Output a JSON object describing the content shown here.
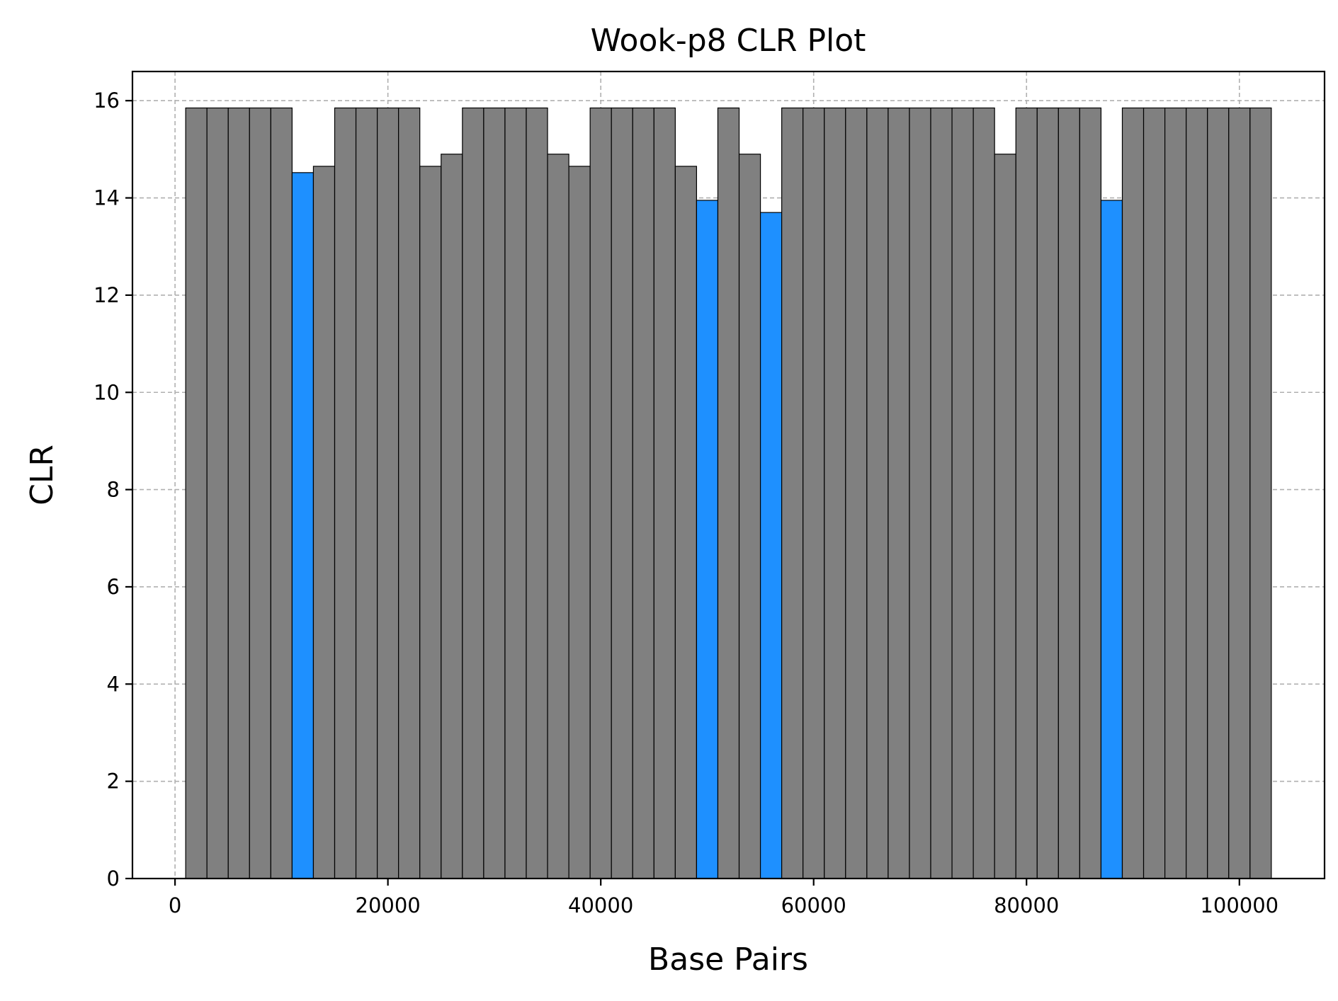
{
  "chart_data": {
    "type": "bar",
    "title": "Wook-p8 CLR Plot",
    "xlabel": "Base Pairs",
    "ylabel": "CLR",
    "xlim": [
      -4000,
      108000
    ],
    "ylim": [
      0,
      16.6
    ],
    "xticks": [
      0,
      20000,
      40000,
      60000,
      80000,
      100000
    ],
    "xtick_labels": [
      "0",
      "20000",
      "40000",
      "60000",
      "80000",
      "100000"
    ],
    "yticks": [
      0,
      2,
      4,
      6,
      8,
      10,
      12,
      14,
      16
    ],
    "ytick_labels": [
      "0",
      "2",
      "4",
      "6",
      "8",
      "10",
      "12",
      "14",
      "16"
    ],
    "grid": true,
    "bin_start": 1000,
    "bin_width": 2000,
    "colors": {
      "normal": "#808080",
      "highlight": "#1e90ff"
    },
    "values": [
      15.85,
      15.85,
      15.85,
      15.85,
      15.85,
      14.52,
      14.65,
      15.85,
      15.85,
      15.85,
      15.85,
      14.65,
      14.9,
      15.85,
      15.85,
      15.85,
      15.85,
      14.9,
      14.65,
      15.85,
      15.85,
      15.85,
      15.85,
      14.65,
      13.95,
      15.85,
      14.9,
      13.7,
      15.85,
      15.85,
      15.85,
      15.85,
      15.85,
      15.85,
      15.85,
      15.85,
      15.85,
      15.85,
      14.9,
      15.85,
      15.85,
      15.85,
      15.85,
      13.95,
      15.85,
      15.85,
      15.85,
      15.85,
      15.85,
      15.85,
      15.85
    ],
    "highlight_indices": [
      5,
      24,
      27,
      43
    ]
  }
}
